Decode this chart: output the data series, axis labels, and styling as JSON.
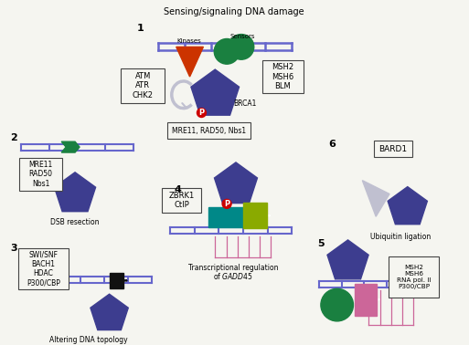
{
  "title": "Sensing/signaling DNA damage",
  "bg_color": "#f5f5f0",
  "pentagon_color": "#3d3d8f",
  "dna_color": "#6666cc",
  "kinase_color": "#cc3300",
  "sensor_color": "#1a8040",
  "green_color": "#1a8040",
  "yellow_green_color": "#8aaa00",
  "teal_color": "#008888",
  "pink_color": "#cc6699",
  "black_color": "#111111",
  "gray_color": "#c0c0d0",
  "p_color": "#cc0000",
  "box_color": "#f5f5f0",
  "box_edge": "#444444",
  "box1_text": "ATM\nATR\nCHK2",
  "box1b_text": "MSH2\nMSH6\nBLM",
  "box1c_text": "MRE11, RAD50, Nbs1",
  "box2_text": "MRE11\nRAD50\nNbs1",
  "box3_text": "SWI/SNF\nBACH1\nHDAC\nP300/CBP",
  "box4_text": "ZBRK1\nCtIP",
  "box5_text": "MSH2\nMSH6\nRNA pol. II\nP300/CBP",
  "box6_text": "BARD1",
  "caption1": "DSB resection",
  "caption2": "Altering DNA topology",
  "caption3": "Transcriptional regulation\nof GADD45",
  "caption4": "Ubiquitin ligation",
  "kinase_label": "Kinases",
  "sensor_label": "Sensors",
  "brca1_label": "BRCA1"
}
